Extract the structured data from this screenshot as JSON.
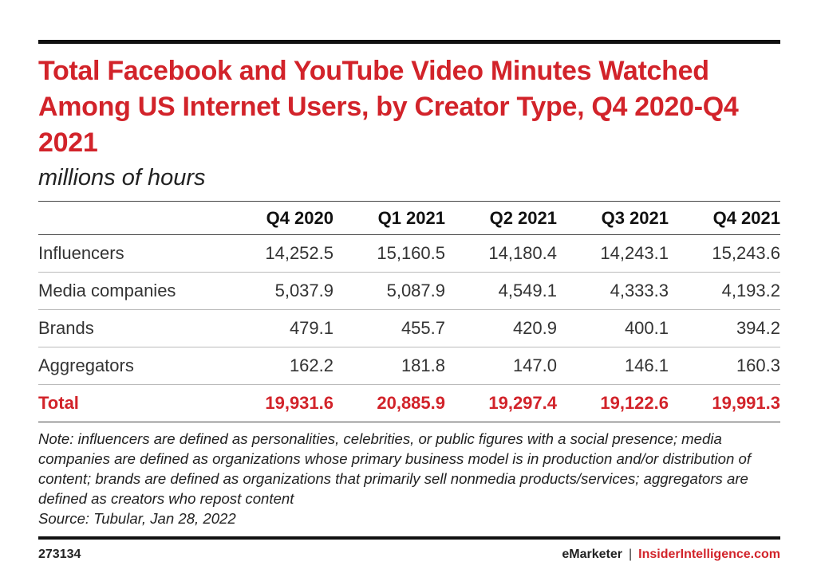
{
  "chart_data": {
    "type": "table",
    "title": "Total Facebook and YouTube Video Minutes Watched Among US Internet Users, by Creator Type, Q4 2020-Q4 2021",
    "subtitle": "millions of hours",
    "columns": [
      "Q4 2020",
      "Q1 2021",
      "Q2 2021",
      "Q3 2021",
      "Q4 2021"
    ],
    "rows": [
      {
        "label": "Influencers",
        "values": [
          "14,252.5",
          "15,160.5",
          "14,180.4",
          "14,243.1",
          "15,243.6"
        ]
      },
      {
        "label": "Media companies",
        "values": [
          "5,037.9",
          "5,087.9",
          "4,549.1",
          "4,333.3",
          "4,193.2"
        ]
      },
      {
        "label": "Brands",
        "values": [
          "479.1",
          "455.7",
          "420.9",
          "400.1",
          "394.2"
        ]
      },
      {
        "label": "Aggregators",
        "values": [
          "162.2",
          "181.8",
          "147.0",
          "146.1",
          "160.3"
        ]
      }
    ],
    "total": {
      "label": "Total",
      "values": [
        "19,931.6",
        "20,885.9",
        "19,297.4",
        "19,122.6",
        "19,991.3"
      ]
    }
  },
  "note": "Note: influencers are defined as personalities, celebrities, or public figures with a social presence; media companies are defined as organizations whose primary business model is in production and/or distribution of content; brands are defined as organizations that primarily sell nonmedia products/services; aggregators are defined as creators who repost content",
  "source": "Source: Tubular, Jan 28, 2022",
  "footer": {
    "chart_id": "273134",
    "brand_left": "eMarketer",
    "separator": "|",
    "brand_right": "InsiderIntelligence.com"
  },
  "colors": {
    "accent": "#d2232a",
    "text": "#222222",
    "rule": "#111111"
  }
}
